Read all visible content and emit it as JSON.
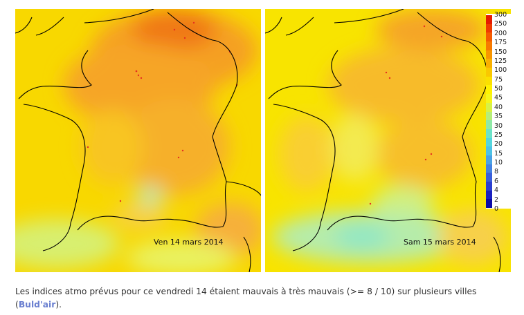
{
  "maps": [
    {
      "date_label": "Ven 14 mars 2014"
    },
    {
      "date_label": "Sam 15 mars 2014"
    }
  ],
  "legend": {
    "ticks": [
      "300",
      "250",
      "200",
      "175",
      "150",
      "125",
      "100",
      "75",
      "50",
      "45",
      "40",
      "35",
      "30",
      "25",
      "20",
      "15",
      "10",
      "8",
      "6",
      "4",
      "2",
      "0"
    ],
    "colors": [
      "#e51b00",
      "#ef3a00",
      "#f55b00",
      "#f77a00",
      "#f89600",
      "#f9b000",
      "#fac800",
      "#fbe000",
      "#fff200",
      "#f4f51a",
      "#d7f247",
      "#b6ee79",
      "#8fe9a6",
      "#6de3c8",
      "#55d6dc",
      "#4ec2e5",
      "#4aa2e5",
      "#4482e2",
      "#3a5fdb",
      "#2b3fd0",
      "#1b21bf",
      "#0b0aa8"
    ]
  },
  "caption": {
    "text_before": "Les indices atmo prévus pour ce vendredi 14 étaient mauvais à très mauvais (>= 8 / 10) sur plusieurs villes (",
    "link": "Buld'air",
    "text_after": ")."
  }
}
